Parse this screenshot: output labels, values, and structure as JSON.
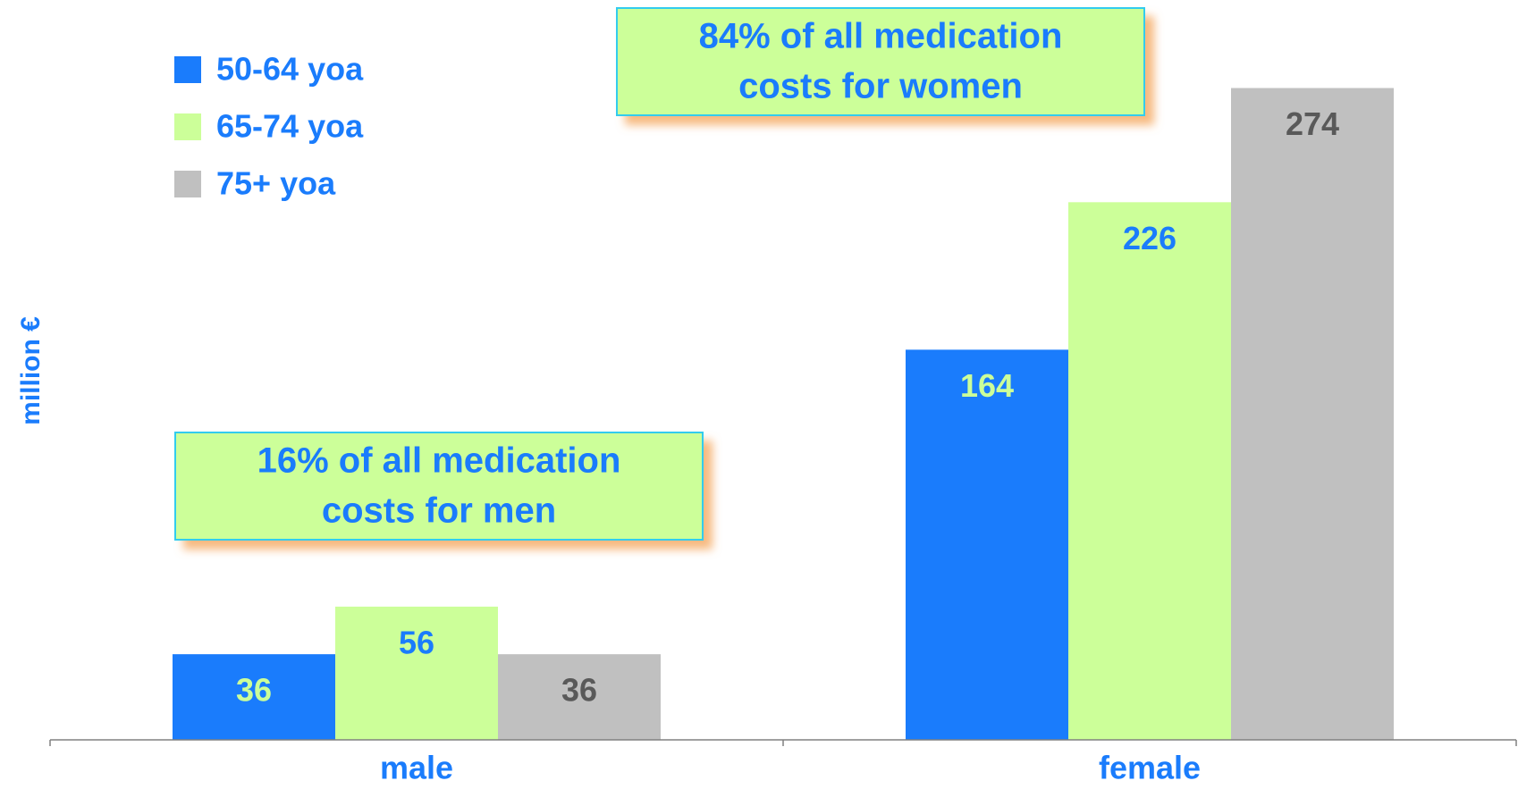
{
  "chart_data": {
    "type": "bar",
    "y_label": "million €",
    "categories": [
      "male",
      "female"
    ],
    "series": [
      {
        "name": "50-64 yoa",
        "color": "#1a7cfc",
        "label_color": "#ccff99",
        "values": [
          36,
          164
        ]
      },
      {
        "name": "65-74 yoa",
        "color": "#ccff99",
        "label_color": "#1a7cfc",
        "values": [
          56,
          226
        ]
      },
      {
        "name": "75+ yoa",
        "color": "#c0c0c0",
        "label_color": "#595959",
        "values": [
          36,
          274
        ]
      }
    ],
    "ylim": [
      0,
      311
    ],
    "legend": "upper left",
    "annotations": [
      {
        "lines": [
          "84% of all medication",
          "costs for women"
        ]
      },
      {
        "lines": [
          "16% of all medication",
          "costs for men"
        ]
      }
    ]
  }
}
